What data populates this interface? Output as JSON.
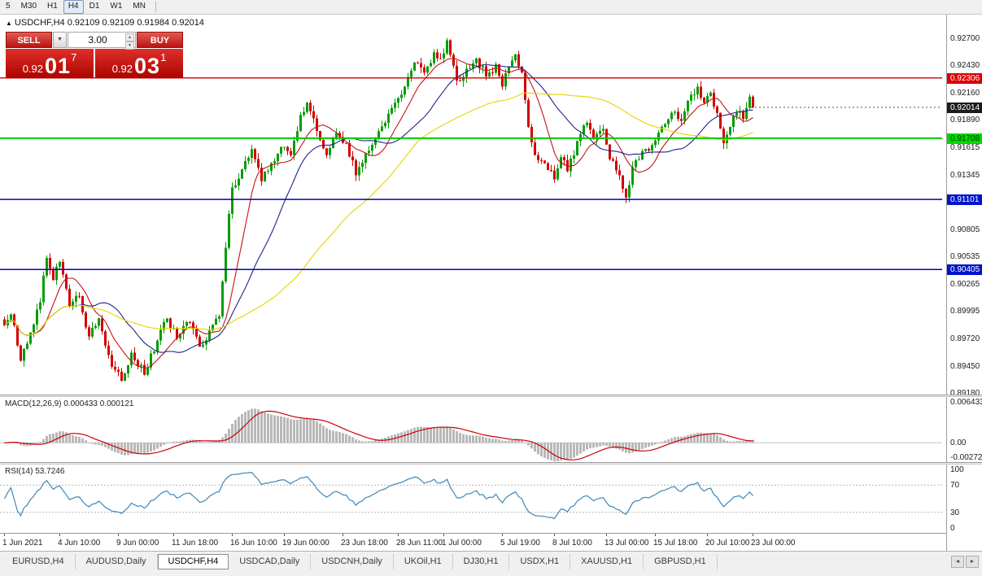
{
  "icons": {
    "chart_marker": "▲",
    "dropdown_arrow": "▼",
    "spin_up": "▲",
    "spin_down": "▼",
    "scroll_left": "◄",
    "scroll_right": "►"
  },
  "toolbar": {
    "timeframes": [
      "5",
      "M30",
      "H1",
      "H4",
      "D1",
      "W1",
      "MN"
    ],
    "active": "H4"
  },
  "chart_header": {
    "text": "USDCHF,H4 0.92109 0.92109 0.91984 0.92014"
  },
  "trade_widget": {
    "sell_label": "SELL",
    "buy_label": "BUY",
    "volume": "3.00",
    "sell_price": {
      "prefix": "0.92",
      "big": "01",
      "sup": "7"
    },
    "buy_price": {
      "prefix": "0.92",
      "big": "03",
      "sup": "1"
    }
  },
  "indicators": {
    "macd": {
      "label": "MACD(12,26,9) 0.000433 0.000121",
      "axis": [
        {
          "text": "0.006433",
          "v": 0.006433
        },
        {
          "text": "0.00",
          "v": 0
        },
        {
          "text": "-0.002726",
          "v": -0.002726
        }
      ]
    },
    "rsi": {
      "label": "RSI(14) 53.7246",
      "axis": [
        {
          "text": "100",
          "v": 100
        },
        {
          "text": "70",
          "v": 70
        },
        {
          "text": "30",
          "v": 30
        },
        {
          "text": "0",
          "v": 0
        }
      ]
    }
  },
  "price_axis": {
    "labels": [
      {
        "text": "0.92700",
        "price": 0.927
      },
      {
        "text": "0.92430",
        "price": 0.9243
      },
      {
        "text": "0.92160",
        "price": 0.9216
      },
      {
        "text": "0.91890",
        "price": 0.9189
      },
      {
        "text": "0.91615",
        "price": 0.91615
      },
      {
        "text": "0.91345",
        "price": 0.91345
      },
      {
        "text": "0.90805",
        "price": 0.90805
      },
      {
        "text": "0.90535",
        "price": 0.90535
      },
      {
        "text": "0.90265",
        "price": 0.90265
      },
      {
        "text": "0.89995",
        "price": 0.89995
      },
      {
        "text": "0.89720",
        "price": 0.8972
      },
      {
        "text": "0.89450",
        "price": 0.8945
      },
      {
        "text": "0.89180",
        "price": 0.8918
      }
    ],
    "badges": [
      {
        "text": "0.92306",
        "price": 0.92306,
        "bg": "#dd0000",
        "fg": "#ffffff"
      },
      {
        "text": "0.92014",
        "price": 0.92014,
        "bg": "#1c1c1c",
        "fg": "#ffffff"
      },
      {
        "text": "0.91708",
        "price": 0.91708,
        "bg": "#00d800",
        "fg": "#00320a"
      },
      {
        "text": "0.91101",
        "price": 0.91101,
        "bg": "#0014cc",
        "fg": "#ffffff"
      },
      {
        "text": "0.90405",
        "price": 0.90405,
        "bg": "#0014cc",
        "fg": "#ffffff"
      }
    ]
  },
  "time_axis": {
    "labels": [
      {
        "text": "1 Jun 2021",
        "i": 0
      },
      {
        "text": "4 Jun 10:00",
        "i": 17
      },
      {
        "text": "9 Jun 00:00",
        "i": 35
      },
      {
        "text": "11 Jun 18:00",
        "i": 52
      },
      {
        "text": "16 Jun 10:00",
        "i": 70
      },
      {
        "text": "19 Jun 00:00",
        "i": 86
      },
      {
        "text": "23 Jun 18:00",
        "i": 104
      },
      {
        "text": "28 Jun 11:00",
        "i": 121
      },
      {
        "text": "1 Jul 00:00",
        "i": 135
      },
      {
        "text": "5 Jul 19:00",
        "i": 153
      },
      {
        "text": "8 Jul 10:00",
        "i": 169
      },
      {
        "text": "13 Jul 00:00",
        "i": 185
      },
      {
        "text": "15 Jul 18:00",
        "i": 200
      },
      {
        "text": "20 Jul 10:00",
        "i": 216
      },
      {
        "text": "23 Jul 00:00",
        "i": 230
      }
    ]
  },
  "tabs": {
    "items": [
      "EURUSD,H4",
      "AUDUSD,Daily",
      "USDCHF,H4",
      "USDCAD,Daily",
      "USDCNH,Daily",
      "UKOil,H1",
      "DJ30,H1",
      "USDX,H1",
      "XAUUSD,H1",
      "GBPUSD,H1"
    ],
    "active": "USDCHF,H4"
  },
  "chart_data": {
    "type": "candlestick",
    "symbol": "USDCHF",
    "timeframe": "H4",
    "ohlc": {
      "open": 0.92109,
      "high": 0.92109,
      "low": 0.91984,
      "close": 0.92014
    },
    "last_price": 0.92014,
    "bars": 231,
    "price_range": {
      "top": 0.927,
      "bottom": 0.8918
    },
    "clip_high": 0.9272,
    "clip_low": 0.8922,
    "noise": 0.0009,
    "wick": 0.0006,
    "anchors": [
      [
        0,
        0.8985
      ],
      [
        2,
        0.8996
      ],
      [
        5,
        0.895
      ],
      [
        8,
        0.8978
      ],
      [
        11,
        0.9008
      ],
      [
        13,
        0.9052
      ],
      [
        15,
        0.903
      ],
      [
        17,
        0.9048
      ],
      [
        20,
        0.9004
      ],
      [
        23,
        0.9014
      ],
      [
        26,
        0.8974
      ],
      [
        29,
        0.8992
      ],
      [
        33,
        0.8944
      ],
      [
        36,
        0.893
      ],
      [
        39,
        0.8958
      ],
      [
        43,
        0.8936
      ],
      [
        47,
        0.897
      ],
      [
        50,
        0.8992
      ],
      [
        53,
        0.8972
      ],
      [
        57,
        0.8988
      ],
      [
        60,
        0.8964
      ],
      [
        63,
        0.898
      ],
      [
        66,
        0.8994
      ],
      [
        68,
        0.9062
      ],
      [
        70,
        0.9122
      ],
      [
        73,
        0.914
      ],
      [
        76,
        0.916
      ],
      [
        79,
        0.9128
      ],
      [
        82,
        0.9146
      ],
      [
        85,
        0.9162
      ],
      [
        88,
        0.9154
      ],
      [
        91,
        0.9194
      ],
      [
        93,
        0.9206
      ],
      [
        96,
        0.9178
      ],
      [
        99,
        0.9154
      ],
      [
        102,
        0.9176
      ],
      [
        105,
        0.9166
      ],
      [
        108,
        0.9134
      ],
      [
        111,
        0.9156
      ],
      [
        114,
        0.917
      ],
      [
        117,
        0.9186
      ],
      [
        120,
        0.9206
      ],
      [
        123,
        0.9222
      ],
      [
        126,
        0.9246
      ],
      [
        129,
        0.9236
      ],
      [
        132,
        0.9256
      ],
      [
        134,
        0.925
      ],
      [
        136,
        0.9268
      ],
      [
        139,
        0.9228
      ],
      [
        142,
        0.924
      ],
      [
        145,
        0.925
      ],
      [
        148,
        0.9232
      ],
      [
        151,
        0.9244
      ],
      [
        153,
        0.9222
      ],
      [
        155,
        0.9242
      ],
      [
        157,
        0.9254
      ],
      [
        159,
        0.9236
      ],
      [
        161,
        0.9182
      ],
      [
        163,
        0.9154
      ],
      [
        166,
        0.9146
      ],
      [
        169,
        0.913
      ],
      [
        171,
        0.9152
      ],
      [
        173,
        0.9138
      ],
      [
        176,
        0.9168
      ],
      [
        179,
        0.9186
      ],
      [
        181,
        0.917
      ],
      [
        184,
        0.918
      ],
      [
        186,
        0.915
      ],
      [
        189,
        0.9134
      ],
      [
        191,
        0.9112
      ],
      [
        193,
        0.9142
      ],
      [
        196,
        0.9158
      ],
      [
        199,
        0.9164
      ],
      [
        202,
        0.9182
      ],
      [
        205,
        0.9196
      ],
      [
        208,
        0.9188
      ],
      [
        211,
        0.9214
      ],
      [
        213,
        0.9222
      ],
      [
        215,
        0.9206
      ],
      [
        217,
        0.9216
      ],
      [
        219,
        0.9196
      ],
      [
        221,
        0.9166
      ],
      [
        223,
        0.9182
      ],
      [
        225,
        0.9196
      ],
      [
        227,
        0.919
      ],
      [
        229,
        0.9212
      ],
      [
        230,
        0.92014
      ]
    ],
    "hlines": [
      {
        "price": 0.92306,
        "color": "#cc0000",
        "width": 1.4
      },
      {
        "price": 0.91708,
        "color": "#00cc00",
        "width": 2
      },
      {
        "price": 0.91101,
        "color": "#0000c8",
        "width": 1.5
      },
      {
        "price": 0.90405,
        "color": "#0000c8",
        "width": 1.5
      }
    ],
    "ma": [
      {
        "period": 10,
        "color": "#c41414"
      },
      {
        "period": 24,
        "color": "#22228c"
      },
      {
        "period": 60,
        "color": "#e6d400"
      }
    ],
    "macd": {
      "fast": 12,
      "slow": 26,
      "signal_period": 9,
      "range": [
        -0.002726,
        0.006433
      ]
    },
    "rsi": {
      "period": 14,
      "levels": [
        70,
        30
      ]
    },
    "colors": {
      "up": "#089c08",
      "down": "#d40000",
      "hist": "#b8b8b8",
      "signal": "#cc0000",
      "rsi": "#3d87b8"
    }
  }
}
